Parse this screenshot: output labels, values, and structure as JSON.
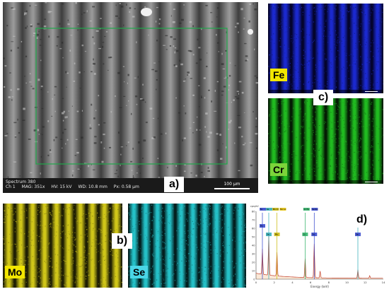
{
  "sem": {
    "spectrum_label": "Spectrum 380",
    "info": [
      "Ch 1",
      "MAG: 351x",
      "HV: 15 kV",
      "WD: 10.8 mm",
      "Px: 0.58 µm"
    ],
    "scale": "100 µm",
    "roi_color": "#1fa84a"
  },
  "panels": {
    "a": "a)",
    "b": "b)",
    "c": "c)",
    "d": "d)"
  },
  "maps": {
    "fe": {
      "label": "Fe",
      "label_bg": "#f2e600",
      "tint": "#1c2bd6"
    },
    "cr": {
      "label": "Cr",
      "label_bg": "#7cd43a",
      "tint": "#22c322"
    },
    "mo": {
      "label": "Mo",
      "label_bg": "#f2e600",
      "tint": "#d9cf1a"
    },
    "se": {
      "label": "Se",
      "label_bg": "#4ad6e6",
      "tint": "#26c9d0"
    }
  },
  "spectrum": {
    "y_unit": "cps/eV",
    "x_label": "Energy (keV)",
    "y_ticks": [
      "0",
      "10",
      "20",
      "30",
      "40",
      "50",
      "60",
      "70",
      "80"
    ],
    "x_ticks": [
      "0",
      "2",
      "4",
      "6",
      "8",
      "10",
      "12",
      "14"
    ],
    "top_tags": [
      "Fe",
      "Se",
      "Mo Cr",
      "Mo Lα",
      "Cr Fe",
      "Se Kα"
    ],
    "peak_tags": [
      "Fe",
      "Se",
      "Mo",
      "Cr",
      "Fe",
      "Se"
    ]
  }
}
